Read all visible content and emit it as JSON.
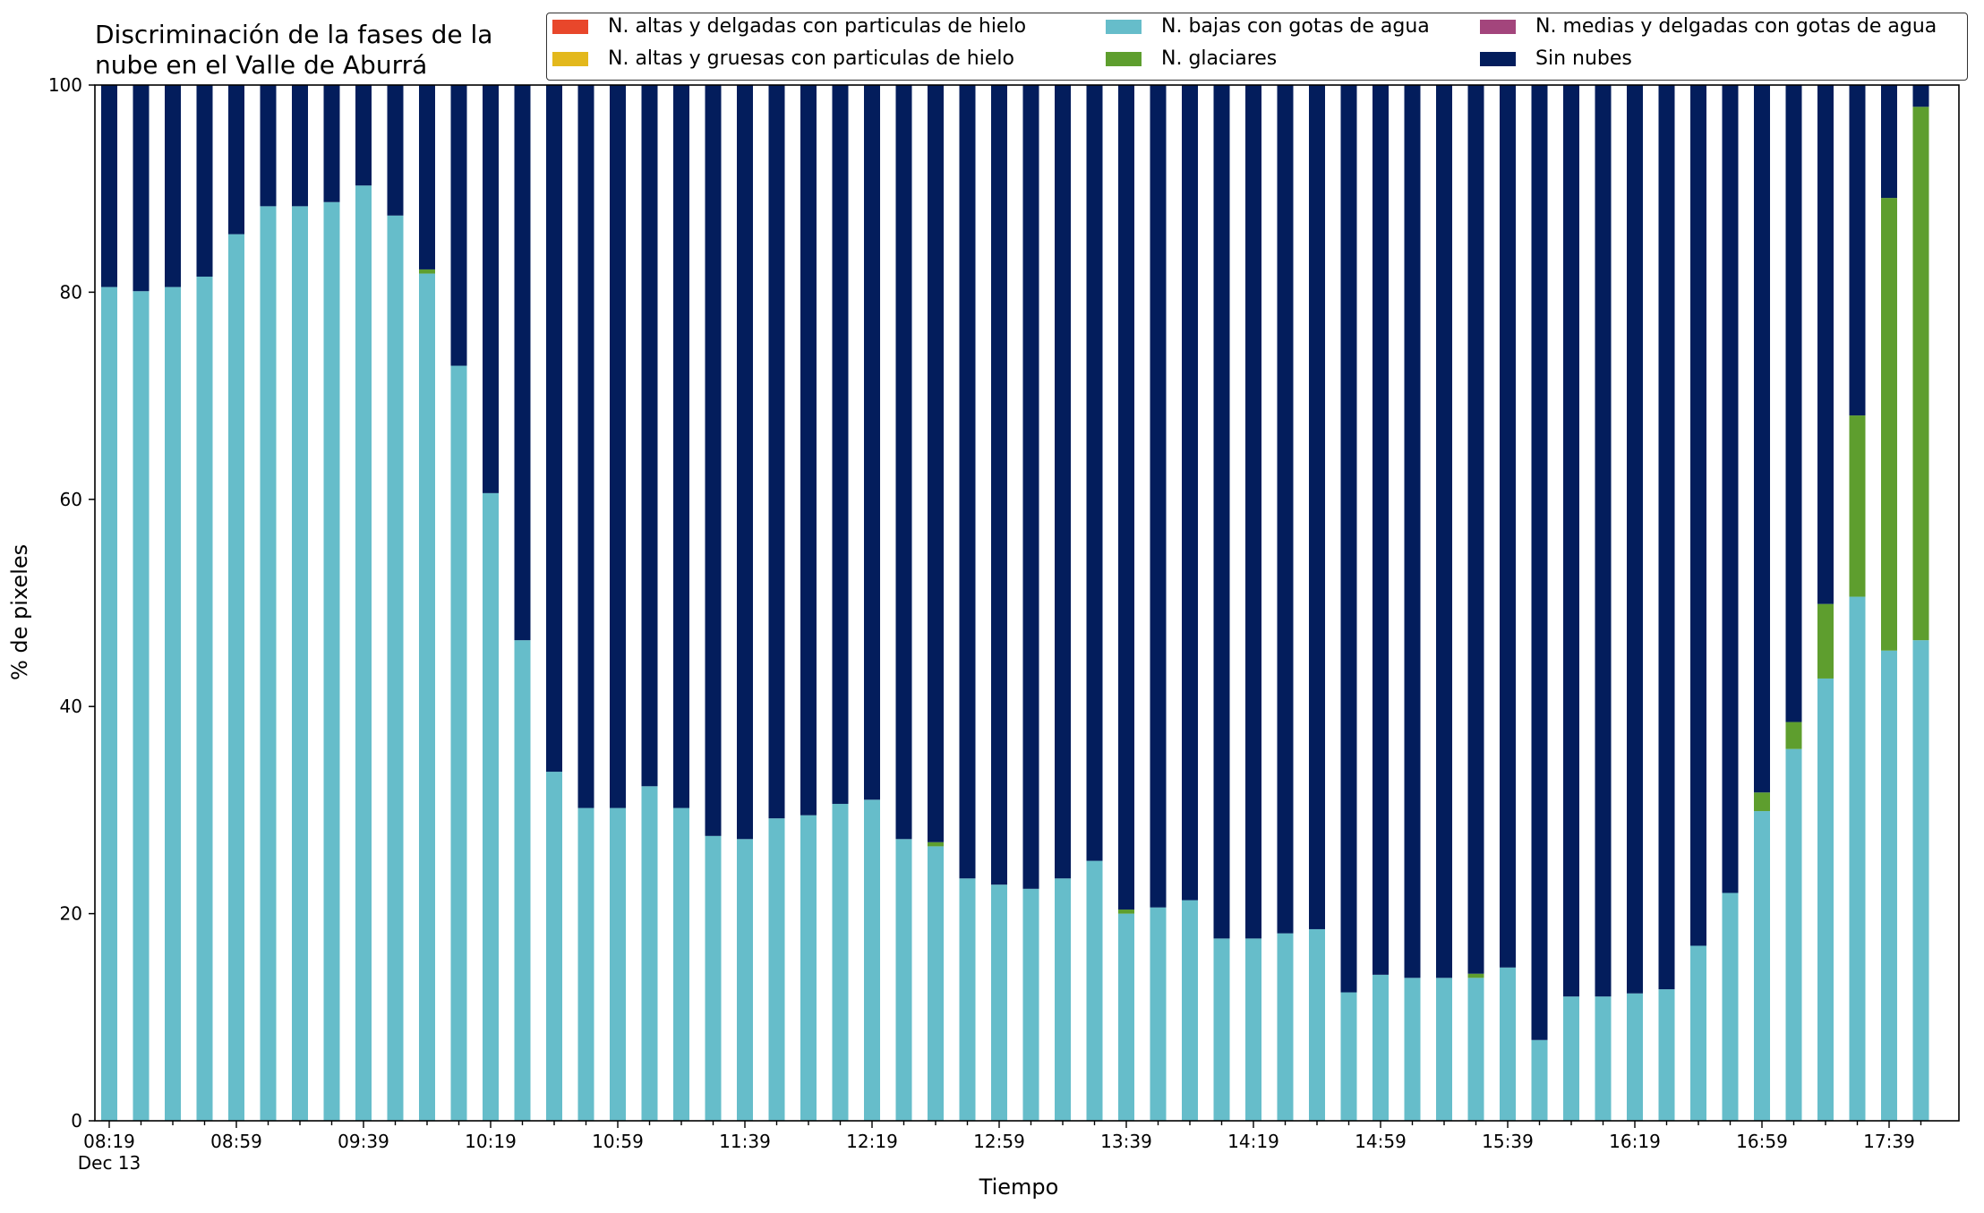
{
  "title_line1": "Discriminación de la fases de la",
  "title_line2": "nube en el Valle de Aburrá",
  "chart_data": {
    "type": "bar",
    "stacked": true,
    "xlabel": "Tiempo",
    "ylabel": "% de pixeles",
    "ylim": [
      0,
      100
    ],
    "yticks": [
      0,
      20,
      40,
      60,
      80,
      100
    ],
    "xtick_labels": [
      "08:19",
      "08:59",
      "09:39",
      "10:19",
      "10:59",
      "11:39",
      "12:19",
      "12:59",
      "13:39",
      "14:19",
      "14:59",
      "15:39",
      "16:19",
      "16:59",
      "17:39"
    ],
    "xtick_sublabel": "Dec 13",
    "legend_position": "top-right",
    "series": [
      {
        "name": "N. altas y delgadas con particulas de hielo",
        "color": "#e8472b",
        "values": [
          0,
          0,
          0,
          0,
          0,
          0,
          0,
          0,
          0,
          0,
          0,
          0,
          0,
          0,
          0,
          0,
          0,
          0,
          0,
          0,
          0,
          0,
          0,
          0,
          0,
          0,
          0,
          0,
          0,
          0,
          0,
          0,
          0,
          0,
          0,
          0,
          0,
          0,
          0,
          0,
          0,
          0,
          0,
          0,
          0,
          0,
          0,
          0,
          0,
          0,
          0,
          0,
          0,
          0,
          0,
          0,
          0,
          0
        ]
      },
      {
        "name": "N. altas y gruesas con particulas de hielo",
        "color": "#e3b81c",
        "values": [
          0,
          0,
          0,
          0,
          0,
          0,
          0,
          0,
          0,
          0,
          0,
          0,
          0,
          0,
          0,
          0,
          0,
          0,
          0,
          0,
          0,
          0,
          0,
          0,
          0,
          0,
          0,
          0,
          0,
          0,
          0,
          0,
          0,
          0,
          0,
          0,
          0,
          0,
          0,
          0,
          0,
          0,
          0,
          0,
          0,
          0,
          0,
          0,
          0,
          0,
          0,
          0,
          0,
          0,
          0,
          0,
          0,
          0
        ]
      },
      {
        "name": "N. bajas con gotas de agua",
        "color": "#66bdca",
        "values": [
          80.5,
          80.1,
          80.5,
          81.5,
          85.6,
          88.3,
          88.3,
          88.7,
          90.3,
          87.4,
          81.8,
          72.9,
          60.6,
          46.4,
          33.7,
          30.2,
          30.2,
          32.3,
          30.2,
          27.5,
          27.2,
          29.2,
          29.5,
          30.6,
          31.0,
          27.2,
          26.5,
          23.4,
          22.8,
          22.4,
          23.4,
          25.1,
          20.0,
          20.6,
          21.3,
          17.6,
          17.6,
          18.1,
          18.5,
          12.4,
          14.1,
          13.8,
          13.8,
          13.8,
          14.8,
          7.8,
          12.0,
          12.0,
          12.3,
          12.7,
          16.9,
          22.0,
          29.9,
          35.9,
          42.7,
          50.6,
          45.4,
          46.4
        ]
      },
      {
        "name": "N. glaciares",
        "color": "#5e9e2e",
        "values": [
          0,
          0,
          0,
          0,
          0,
          0,
          0,
          0,
          0,
          0,
          0.4,
          0,
          0,
          0,
          0,
          0,
          0,
          0,
          0,
          0,
          0,
          0,
          0,
          0,
          0,
          0,
          0.4,
          0,
          0,
          0,
          0,
          0,
          0.4,
          0,
          0,
          0,
          0,
          0,
          0,
          0,
          0,
          0,
          0,
          0.4,
          0,
          0,
          0,
          0,
          0,
          0,
          0,
          0,
          1.8,
          2.6,
          7.2,
          17.5,
          43.7,
          51.5
        ]
      },
      {
        "name": "N. medias y delgadas con gotas de agua",
        "color": "#a3457c",
        "values": [
          0,
          0,
          0,
          0,
          0,
          0,
          0,
          0,
          0,
          0,
          0,
          0,
          0,
          0,
          0,
          0,
          0,
          0,
          0,
          0,
          0,
          0,
          0,
          0,
          0,
          0,
          0,
          0,
          0,
          0,
          0,
          0,
          0,
          0,
          0,
          0,
          0,
          0,
          0,
          0,
          0,
          0,
          0,
          0,
          0,
          0,
          0,
          0,
          0,
          0,
          0,
          0,
          0,
          0,
          0,
          0,
          0,
          0
        ]
      },
      {
        "name": "Sin nubes",
        "color": "#031d5c",
        "values": [
          19.5,
          19.9,
          19.5,
          18.5,
          14.4,
          11.7,
          11.7,
          11.3,
          9.7,
          12.6,
          17.8,
          27.1,
          39.4,
          53.6,
          66.3,
          69.8,
          69.8,
          67.7,
          69.8,
          72.5,
          72.8,
          70.8,
          70.5,
          69.4,
          69.0,
          72.8,
          73.1,
          76.6,
          77.2,
          77.6,
          76.6,
          74.9,
          79.6,
          79.4,
          78.7,
          82.4,
          82.4,
          81.9,
          81.5,
          87.6,
          85.9,
          86.2,
          86.2,
          85.8,
          85.2,
          92.2,
          88.0,
          88.0,
          87.7,
          87.3,
          83.1,
          78.0,
          68.3,
          61.5,
          50.1,
          31.9,
          10.9,
          2.1
        ]
      }
    ]
  }
}
